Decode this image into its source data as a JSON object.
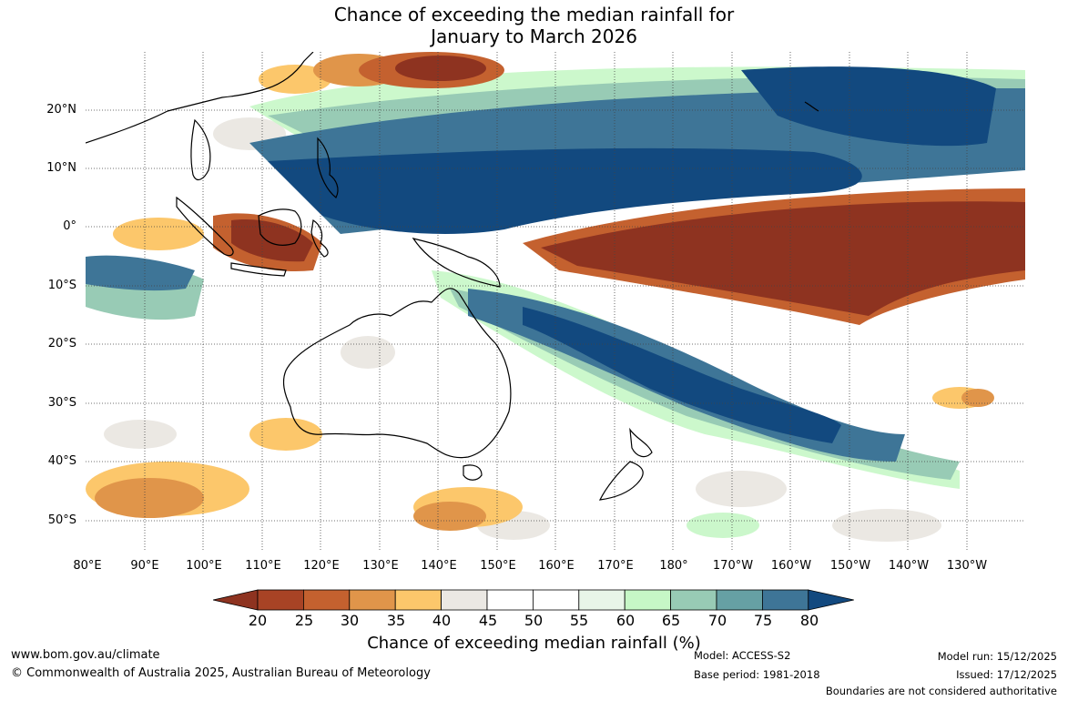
{
  "title": {
    "line1": "Chance of exceeding the median rainfall for",
    "line2": "January to March 2026"
  },
  "axes": {
    "lat_labels": [
      "20°N",
      "10°N",
      "0°",
      "10°S",
      "20°S",
      "30°S",
      "40°S",
      "50°S"
    ],
    "lon_labels": [
      "80°E",
      "90°E",
      "100°E",
      "110°E",
      "120°E",
      "130°E",
      "140°E",
      "150°E",
      "160°E",
      "170°E",
      "180°",
      "170°W",
      "160°W",
      "150°W",
      "140°W",
      "130°W"
    ]
  },
  "colorbar": {
    "title": "Chance of exceeding median rainfall (%)",
    "tick_labels": [
      "20",
      "25",
      "30",
      "35",
      "40",
      "45",
      "50",
      "55",
      "60",
      "65",
      "70",
      "75",
      "80"
    ],
    "colors": [
      "#8e3320",
      "#a84325",
      "#c4612f",
      "#e0954a",
      "#fcc76b",
      "#ebe8e3",
      "#ffffff",
      "#ffffff",
      "#e8f5e8",
      "#c6f7c6",
      "#98cbb5",
      "#66a0a4",
      "#3e7597",
      "#12497f"
    ]
  },
  "footer": {
    "website": "www.bom.gov.au/climate",
    "copyright": "© Commonwealth of Australia 2025, Australian Bureau of Meteorology",
    "model": "Model: ACCESS-S2",
    "base_period": "Base period: 1981-2018",
    "model_run": "Model run: 15/12/2025",
    "issued": "Issued: 17/12/2025",
    "disclaimer": "Boundaries are not considered authoritative"
  }
}
